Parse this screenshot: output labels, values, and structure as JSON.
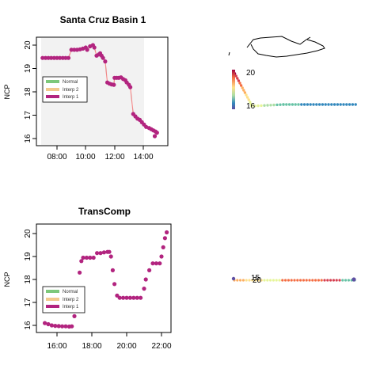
{
  "chart_data": [
    {
      "type": "scatter",
      "title": "Santa Cruz Basin 1",
      "xlabel": "",
      "ylabel": "NCP",
      "x_ticks": [
        "08:00",
        "10:00",
        "12:00",
        "14:00"
      ],
      "x_tick_values": [
        8,
        10,
        12,
        14
      ],
      "y_ticks": [
        "16",
        "17",
        "18",
        "19",
        "20"
      ],
      "xlim": [
        6.5,
        15.2
      ],
      "ylim": [
        15.9,
        20.2
      ],
      "grid": "dense vertical gray lines from 06:45 to 13:45",
      "legend_position": "center-left",
      "legend": [
        {
          "label": "Normal",
          "color": "#7dc87a"
        },
        {
          "label": "Interp 2",
          "color": "#f2c98c"
        },
        {
          "label": "Interp 1",
          "color": "#b2247f"
        }
      ],
      "colors": {
        "points": "#b2247f",
        "interp_line": "#f08a8a",
        "grid": "#d6d6d6"
      },
      "series": [
        {
          "name": "Interp 1",
          "points": [
            [
              7.0,
              19.45
            ],
            [
              7.2,
              19.45
            ],
            [
              7.4,
              19.45
            ],
            [
              7.6,
              19.45
            ],
            [
              7.8,
              19.45
            ],
            [
              8.0,
              19.45
            ],
            [
              8.2,
              19.45
            ],
            [
              8.4,
              19.45
            ],
            [
              8.6,
              19.45
            ],
            [
              8.8,
              19.45
            ],
            [
              9.0,
              19.8
            ],
            [
              9.2,
              19.8
            ],
            [
              9.4,
              19.8
            ],
            [
              9.6,
              19.82
            ],
            [
              9.8,
              19.85
            ],
            [
              10.0,
              19.9
            ],
            [
              10.1,
              19.8
            ],
            [
              10.3,
              19.95
            ],
            [
              10.5,
              20.0
            ],
            [
              10.6,
              19.9
            ],
            [
              10.75,
              19.55
            ],
            [
              10.9,
              19.6
            ],
            [
              11.0,
              19.65
            ],
            [
              11.1,
              19.55
            ],
            [
              11.2,
              19.45
            ],
            [
              11.35,
              19.3
            ],
            [
              11.5,
              18.4
            ],
            [
              11.65,
              18.35
            ],
            [
              11.8,
              18.32
            ],
            [
              11.95,
              18.3
            ],
            [
              12.0,
              18.6
            ],
            [
              12.15,
              18.6
            ],
            [
              12.3,
              18.6
            ],
            [
              12.45,
              18.62
            ],
            [
              12.6,
              18.55
            ],
            [
              12.75,
              18.5
            ],
            [
              12.85,
              18.4
            ],
            [
              13.0,
              18.3
            ],
            [
              13.1,
              18.2
            ],
            [
              13.3,
              17.05
            ],
            [
              13.45,
              16.95
            ],
            [
              13.6,
              16.85
            ],
            [
              13.75,
              16.8
            ],
            [
              13.9,
              16.7
            ],
            [
              14.05,
              16.6
            ],
            [
              14.2,
              16.5
            ],
            [
              14.4,
              16.45
            ],
            [
              14.55,
              16.4
            ],
            [
              14.7,
              16.35
            ],
            [
              14.85,
              16.3
            ],
            [
              14.95,
              16.25
            ],
            [
              14.8,
              16.1
            ]
          ]
        }
      ]
    },
    {
      "type": "line",
      "title": "",
      "xlabel": "",
      "ylabel": "",
      "colorbar_labels": [
        "20",
        "16"
      ],
      "colors": {
        "track": "#000000",
        "scale": [
          "#5e4fa2",
          "#3288bd",
          "#66c2a5",
          "#abdda4",
          "#e6f598",
          "#fee08b",
          "#fdae61",
          "#f46d43",
          "#d53e4f",
          "#9e0142"
        ]
      }
    },
    {
      "type": "scatter",
      "title": "TransComp",
      "xlabel": "",
      "ylabel": "NCP",
      "x_ticks": [
        "16:00",
        "18:00",
        "20:00",
        "22:00"
      ],
      "x_tick_values": [
        16,
        18,
        20,
        22
      ],
      "y_ticks": [
        "16",
        "17",
        "18",
        "19",
        "20"
      ],
      "xlim": [
        14.9,
        22.6
      ],
      "ylim": [
        15.8,
        20.3
      ],
      "legend_position": "bottom-left",
      "legend": [
        {
          "label": "Normal",
          "color": "#7dc87a"
        },
        {
          "label": "Interp 2",
          "color": "#f2c98c"
        },
        {
          "label": "Interp 1",
          "color": "#b2247f"
        }
      ],
      "colors": {
        "points": "#b2247f"
      },
      "series": [
        {
          "name": "Interp 1",
          "points": [
            [
              15.3,
              16.1
            ],
            [
              15.5,
              16.05
            ],
            [
              15.7,
              16.0
            ],
            [
              15.9,
              15.98
            ],
            [
              16.1,
              15.97
            ],
            [
              16.3,
              15.96
            ],
            [
              16.5,
              15.96
            ],
            [
              16.7,
              15.95
            ],
            [
              16.85,
              15.96
            ],
            [
              17.0,
              16.4
            ],
            [
              17.1,
              16.9
            ],
            [
              17.2,
              17.6
            ],
            [
              17.3,
              18.3
            ],
            [
              17.4,
              18.8
            ],
            [
              17.5,
              18.95
            ],
            [
              17.7,
              18.95
            ],
            [
              17.9,
              18.95
            ],
            [
              18.1,
              18.95
            ],
            [
              18.3,
              19.15
            ],
            [
              18.5,
              19.15
            ],
            [
              18.7,
              19.18
            ],
            [
              18.9,
              19.2
            ],
            [
              19.0,
              19.2
            ],
            [
              19.1,
              19.0
            ],
            [
              19.2,
              18.4
            ],
            [
              19.3,
              17.8
            ],
            [
              19.45,
              17.3
            ],
            [
              19.6,
              17.2
            ],
            [
              19.8,
              17.2
            ],
            [
              20.0,
              17.2
            ],
            [
              20.2,
              17.2
            ],
            [
              20.4,
              17.2
            ],
            [
              20.6,
              17.2
            ],
            [
              20.8,
              17.2
            ],
            [
              21.0,
              17.6
            ],
            [
              21.1,
              18.0
            ],
            [
              21.3,
              18.4
            ],
            [
              21.5,
              18.7
            ],
            [
              21.7,
              18.7
            ],
            [
              21.9,
              18.7
            ],
            [
              22.0,
              19.0
            ],
            [
              22.1,
              19.4
            ],
            [
              22.2,
              19.8
            ],
            [
              22.3,
              20.05
            ]
          ]
        }
      ]
    },
    {
      "type": "line",
      "title": "",
      "xlabel": "",
      "ylabel": "",
      "colorbar_labels": [
        "15",
        "20"
      ],
      "colors": {
        "scale": [
          "#5e4fa2",
          "#3288bd",
          "#66c2a5",
          "#abdda4",
          "#e6f598",
          "#fee08b",
          "#fdae61",
          "#f46d43",
          "#d53e4f",
          "#9e0142"
        ]
      }
    }
  ]
}
